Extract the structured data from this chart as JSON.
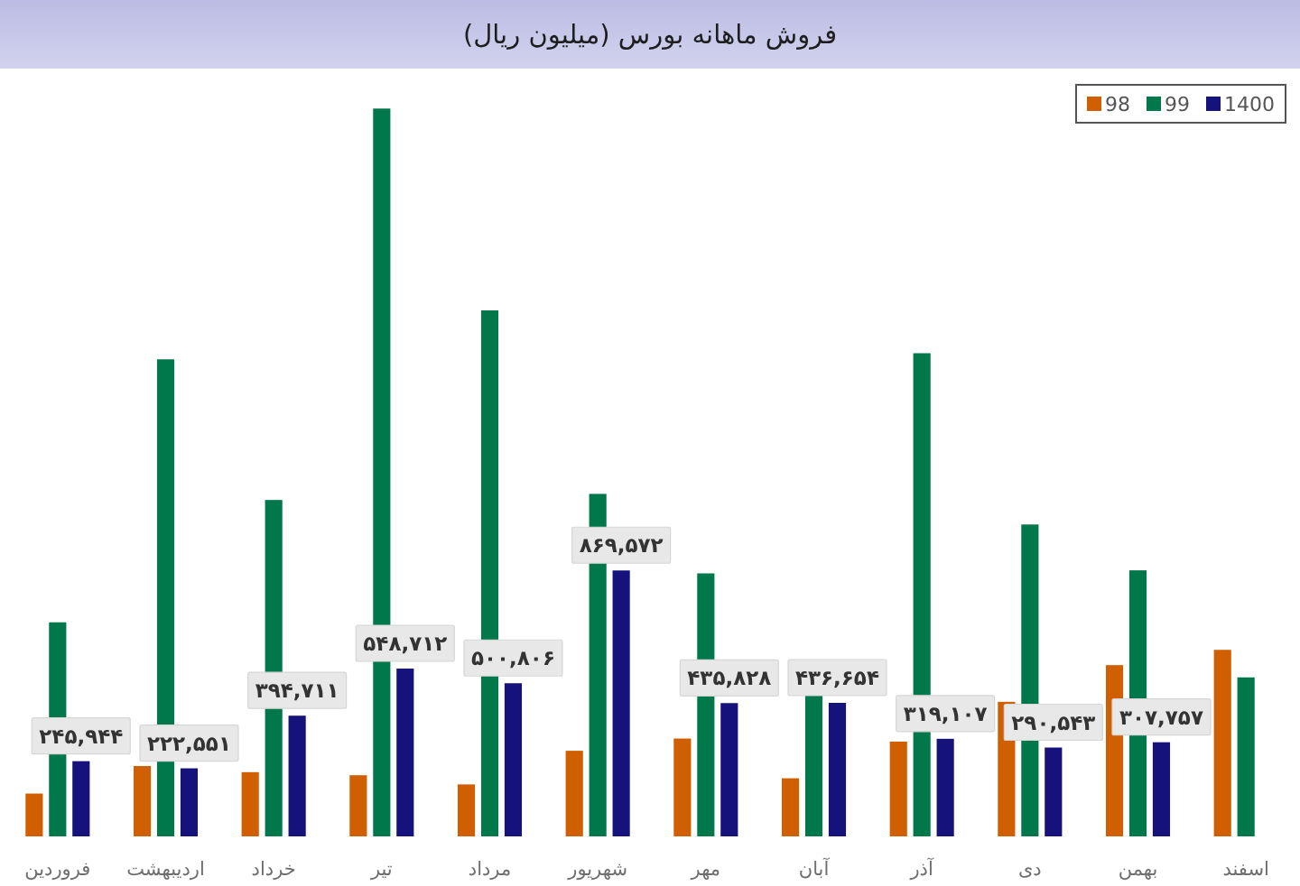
{
  "chart_data": {
    "type": "bar",
    "title": "فروش ماهانه بورس (میلیون ریال)",
    "categories": [
      "فروردین",
      "اردیبهشت",
      "خرداد",
      "تیر",
      "مرداد",
      "شهریور",
      "مهر",
      "آبان",
      "آذر",
      "دی",
      "بهمن",
      "اسفند"
    ],
    "series": [
      {
        "name": "98",
        "color": "#cf5f00",
        "values": [
          140000,
          230000,
          210000,
          200000,
          170000,
          280000,
          320000,
          190000,
          310000,
          440000,
          560000,
          610000
        ]
      },
      {
        "name": "99",
        "color": "#00784b",
        "values": [
          700000,
          1560000,
          1100000,
          2380000,
          1720000,
          1120000,
          860000,
          470000,
          1580000,
          1020000,
          870000,
          520000
        ]
      },
      {
        "name": "1400",
        "color": "#16127c",
        "values": [
          245944,
          222551,
          394711,
          548712,
          500806,
          869572,
          435828,
          436654,
          319107,
          290543,
          307757,
          null
        ],
        "value_labels": [
          "۲۴۵,۹۴۴",
          "۲۲۲,۵۵۱",
          "۳۹۴,۷۱۱",
          "۵۴۸,۷۱۲",
          "۵۰۰,۸۰۶",
          "۸۶۹,۵۷۲",
          "۴۳۵,۸۲۸",
          "۴۳۶,۶۵۴",
          "۳۱۹,۱۰۷",
          "۲۹۰,۵۴۳",
          "۳۰۷,۷۵۷",
          null
        ]
      }
    ],
    "legend": "top right"
  }
}
